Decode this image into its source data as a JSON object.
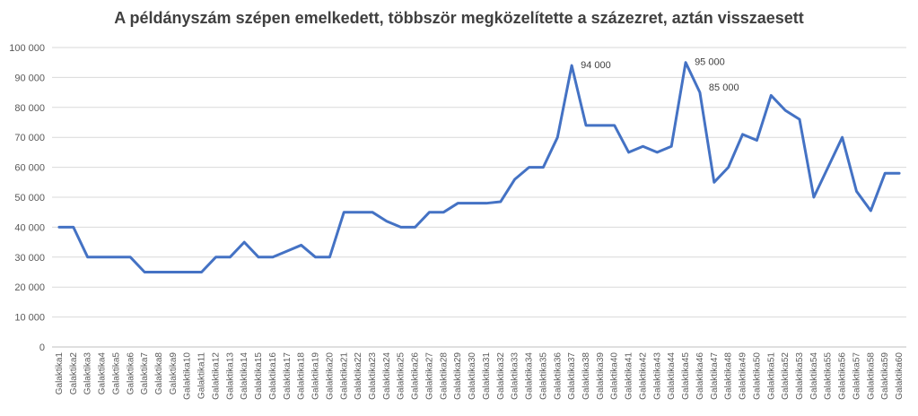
{
  "chart_data": {
    "type": "line",
    "title": "A példányszám szépen emelkedett, többször megközelítette a százezret, aztán visszaesett",
    "xlabel": "",
    "ylabel": "",
    "ylim": [
      0,
      100000
    ],
    "yticks": [
      0,
      10000,
      20000,
      30000,
      40000,
      50000,
      60000,
      70000,
      80000,
      90000,
      100000
    ],
    "ytick_labels": [
      "0",
      "10 000",
      "20 000",
      "30 000",
      "40 000",
      "50 000",
      "60 000",
      "70 000",
      "80 000",
      "90 000",
      "100 000"
    ],
    "grid": true,
    "line_color": "#4472C4",
    "categories": [
      "Galaktika1",
      "Galaktika2",
      "Galaktika3",
      "Galaktika4",
      "Galaktika5",
      "Galaktika6",
      "Galaktika7",
      "Galaktika8",
      "Galaktika9",
      "Galaktika10",
      "Galaktika11",
      "Galaktika12",
      "Galaktika13",
      "Galaktika14",
      "Galaktika15",
      "Galaktika16",
      "Galaktika17",
      "Galaktika18",
      "Galaktika19",
      "Galaktika20",
      "Galaktika21",
      "Galaktika22",
      "Galaktika23",
      "Galaktika24",
      "Galaktika25",
      "Galaktika26",
      "Galaktika27",
      "Galaktika28",
      "Galaktika29",
      "Galaktika30",
      "Galaktika31",
      "Galaktika32",
      "Galaktika33",
      "Galaktika34",
      "Galaktika35",
      "Galaktika36",
      "Galaktika37",
      "Galaktika38",
      "Galaktika39",
      "Galaktika40",
      "Galaktika41",
      "Galaktika42",
      "Galaktika43",
      "Galaktika44",
      "Galaktika45",
      "Galaktika46",
      "Galaktika47",
      "Galaktika48",
      "Galaktika49",
      "Galaktika50",
      "Galaktika51",
      "Galaktika52",
      "Galaktika53",
      "Galaktika54",
      "Galaktika55",
      "Galaktika56",
      "Galaktika57",
      "Galaktika58",
      "Galaktika59",
      "Galaktika60"
    ],
    "values": [
      40000,
      40000,
      30000,
      30000,
      30000,
      30000,
      25000,
      25000,
      25000,
      25000,
      25000,
      30000,
      30000,
      35000,
      30000,
      30000,
      32000,
      34000,
      30000,
      30000,
      45000,
      45000,
      45000,
      42000,
      40000,
      40000,
      45000,
      45000,
      48000,
      48000,
      48000,
      48500,
      56000,
      60000,
      60000,
      70000,
      94000,
      74000,
      74000,
      74000,
      65000,
      67000,
      65000,
      67000,
      95000,
      85000,
      55000,
      60000,
      71000,
      69000,
      84000,
      79000,
      76000,
      50000,
      60000,
      70000,
      52000,
      45500,
      58000,
      58000
    ],
    "data_labels": [
      {
        "index": 36,
        "text": "94 000"
      },
      {
        "index": 44,
        "text": "95 000"
      },
      {
        "index": 45,
        "text": "85 000"
      }
    ]
  }
}
